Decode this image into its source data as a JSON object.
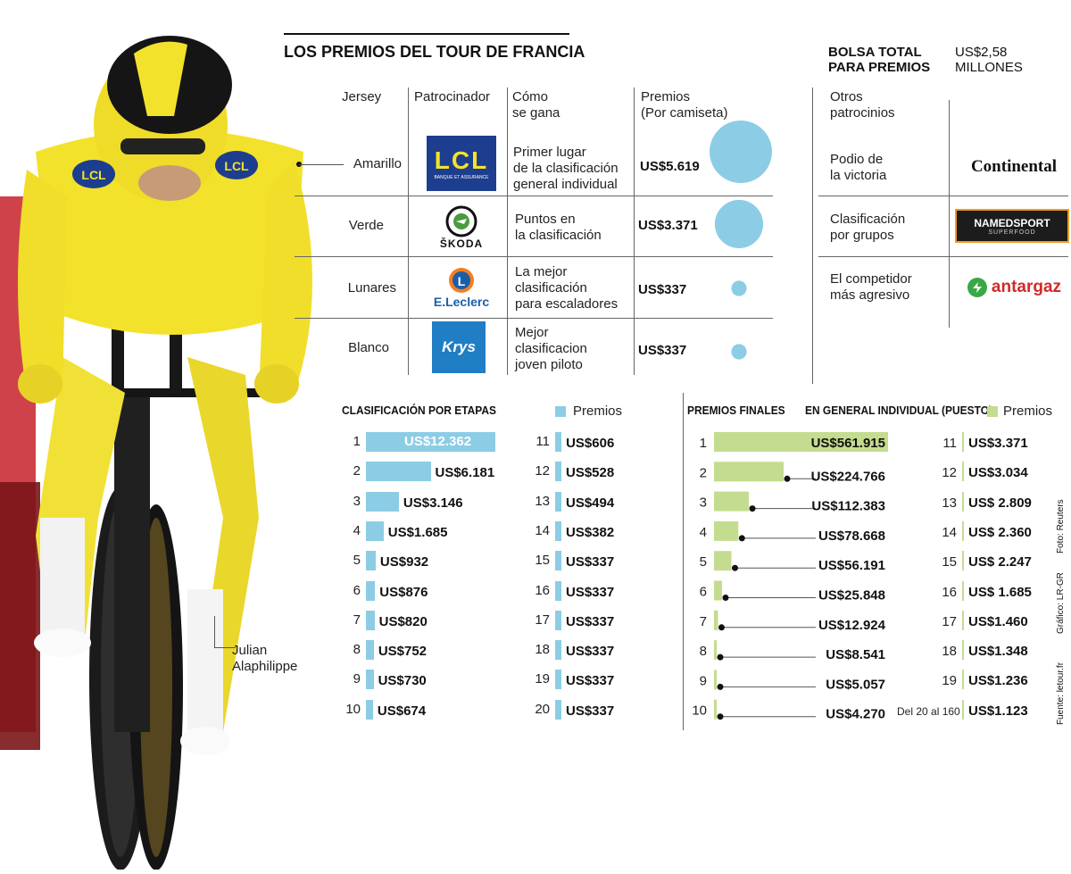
{
  "title": "LOS PREMIOS DEL TOUR DE FRANCIA",
  "bolsa": {
    "label_line1": "BOLSA TOTAL",
    "label_line2": "PARA PREMIOS",
    "value_line1": "US$2,58",
    "value_line2": "MILLONES"
  },
  "colors": {
    "yellow_jersey": "#f3e22b",
    "blue": "#8ccde5",
    "green": "#c4dc8f",
    "lcl": "#1d3e8e",
    "krys": "#1f7ec4",
    "leclerc": "#1b5ea8",
    "skoda": "#4b9b3f"
  },
  "table": {
    "headers": {
      "jersey": "Jersey",
      "patrocinador": "Patrocinador",
      "como_l1": "Cómo",
      "como_l2": "se gana",
      "premios_l1": "Premios",
      "premios_l2": "(Por camiseta)"
    },
    "rows": [
      {
        "jersey": "Amarillo",
        "sponsor": "LCL",
        "sponsor_sub": "BANQUE ET ASSURANCE",
        "how_l1": "Primer lugar",
        "how_l2": "de la clasificación",
        "how_l3": "general individual",
        "prize": "US$5.619",
        "prize_value": 5619
      },
      {
        "jersey": "Verde",
        "sponsor": "ŠKODA",
        "how_l1": "Puntos en",
        "how_l2": "la clasificación",
        "how_l3": "",
        "prize": "US$3.371",
        "prize_value": 3371
      },
      {
        "jersey": "Lunares",
        "sponsor": "E.Leclerc",
        "how_l1": "La mejor",
        "how_l2": "clasificación",
        "how_l3": "para escaladores",
        "prize": "US$337",
        "prize_value": 337
      },
      {
        "jersey": "Blanco",
        "sponsor": "Krys",
        "how_l1": "Mejor",
        "how_l2": "clasificacion",
        "how_l3": "joven piloto",
        "prize": "US$337",
        "prize_value": 337
      }
    ]
  },
  "otros": {
    "header_l1": "Otros",
    "header_l2": "patrocinios",
    "items": [
      {
        "l1": "Podio de",
        "l2": "la victoria",
        "sponsor": "Continental"
      },
      {
        "l1": "Clasificación",
        "l2": "por grupos",
        "sponsor": "NAMEDSPORT",
        "sponsor_sub": "SUPERFOOD"
      },
      {
        "l1": "El competidor",
        "l2": "más agresivo",
        "sponsor": "antargaz"
      }
    ]
  },
  "chart_data": [
    {
      "type": "bar",
      "title": "CLASIFICACIÓN POR ETAPAS",
      "legend": "Premios",
      "categories": [
        "1",
        "2",
        "3",
        "4",
        "5",
        "6",
        "7",
        "8",
        "9",
        "10",
        "11",
        "12",
        "13",
        "14",
        "15",
        "16",
        "17",
        "18",
        "19",
        "20"
      ],
      "labels": [
        "US$12.362",
        "US$6.181",
        "US$3.146",
        "US$1.685",
        "US$932",
        "US$876",
        "US$820",
        "US$752",
        "US$730",
        "US$674",
        "US$606",
        "US$528",
        "US$494",
        "US$382",
        "US$337",
        "US$337",
        "US$337",
        "US$337",
        "US$337",
        "US$337"
      ],
      "values": [
        12362,
        6181,
        3146,
        1685,
        932,
        876,
        820,
        752,
        730,
        674,
        606,
        528,
        494,
        382,
        337,
        337,
        337,
        337,
        337,
        337
      ]
    },
    {
      "type": "bar",
      "title": "PREMIOS FINALES",
      "subtitle": "EN GENERAL INDIVIDUAL (PUESTO)",
      "legend": "Premios",
      "categories": [
        "1",
        "2",
        "3",
        "4",
        "5",
        "6",
        "7",
        "8",
        "9",
        "10",
        "11",
        "12",
        "13",
        "14",
        "15",
        "16",
        "17",
        "18",
        "19"
      ],
      "labels": [
        "US$561.915",
        "US$224.766",
        "US$112.383",
        "US$78.668",
        "US$56.191",
        "US$25.848",
        "US$12.924",
        "US$8.541",
        "US$5.057",
        "US$4.270",
        "US$3.371",
        "US$3.034",
        "US$ 2.809",
        "US$ 2.360",
        "US$ 2.247",
        "US$ 1.685",
        "US$1.460",
        "US$1.348",
        "US$1.236"
      ],
      "values": [
        561915,
        224766,
        112383,
        78668,
        56191,
        25848,
        12924,
        8541,
        5057,
        4270,
        3371,
        3034,
        2809,
        2360,
        2247,
        1685,
        1460,
        1348,
        1236
      ],
      "extra_label": "Del 20 al 160",
      "extra_value_label": "US$1.123",
      "extra_value": 1123
    }
  ],
  "photo_caption_l1": "Julian",
  "photo_caption_l2": "Alaphilippe",
  "photo_logo_text": "LCL",
  "credits": {
    "foto": "Foto: Reuters",
    "grafico": "Gráfico: LR-GR",
    "fuente": "Fuente: letour.fr"
  }
}
